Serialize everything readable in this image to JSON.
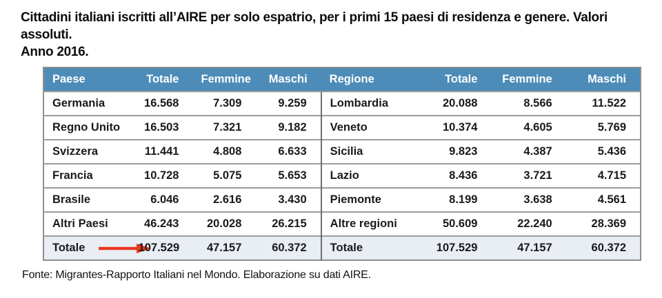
{
  "title": {
    "line1": "Cittadini italiani iscritti all’AIRE per solo espatrio, per i primi 15 paesi di residenza e genere. Valori assoluti.",
    "line2": "Anno 2016."
  },
  "footer": "Fonte: Migrantes-Rapporto Italiani nel Mondo. Elaborazione su dati AIRE.",
  "colors": {
    "header_bg": "#4d8cb8",
    "header_text": "#ffffff",
    "total_row_bg": "#e9edf4",
    "border": "#9b9b9b",
    "outer_border": "#8e8e8e",
    "divider": "#6f6f6f",
    "arrow": "#e8381c",
    "text": "#1a1a1a"
  },
  "table": {
    "headers": [
      "Paese",
      "Totale",
      "Femmine",
      "Maschi",
      "Regione",
      "Totale",
      "Femmine",
      "Maschi"
    ],
    "rows": [
      [
        "Germania",
        "16.568",
        "7.309",
        "9.259",
        "Lombardia",
        "20.088",
        "8.566",
        "11.522"
      ],
      [
        "Regno Unito",
        "16.503",
        "7.321",
        "9.182",
        "Veneto",
        "10.374",
        "4.605",
        "5.769"
      ],
      [
        "Svizzera",
        "11.441",
        "4.808",
        "6.633",
        "Sicilia",
        "9.823",
        "4.387",
        "5.436"
      ],
      [
        "Francia",
        "10.728",
        "5.075",
        "5.653",
        "Lazio",
        "8.436",
        "3.721",
        "4.715"
      ],
      [
        "Brasile",
        "6.046",
        "2.616",
        "3.430",
        "Piemonte",
        "8.199",
        "3.638",
        "4.561"
      ],
      [
        "Altri Paesi",
        "46.243",
        "20.028",
        "26.215",
        "Altre regioni",
        "50.609",
        "22.240",
        "28.369"
      ]
    ],
    "total_row": [
      "Totale",
      "107.529",
      "47.157",
      "60.372",
      "Totale",
      "107.529",
      "47.157",
      "60.372"
    ]
  }
}
